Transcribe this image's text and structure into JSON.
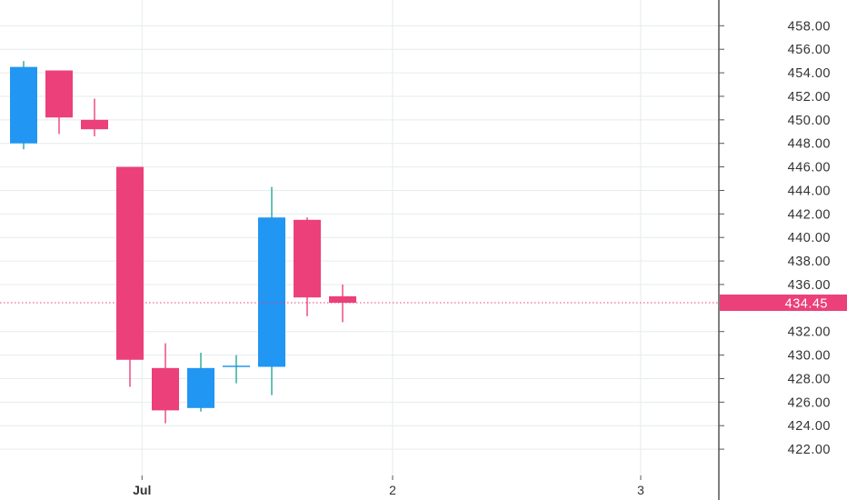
{
  "chart_data": {
    "type": "candlestick",
    "y_ticks": [
      "422.00",
      "424.00",
      "426.00",
      "428.00",
      "430.00",
      "432.00",
      "436.00",
      "438.00",
      "440.00",
      "442.00",
      "444.00",
      "446.00",
      "448.00",
      "450.00",
      "452.00",
      "454.00",
      "456.00",
      "458.00"
    ],
    "ylim": [
      420.5,
      459.2
    ],
    "x_labels": [
      {
        "text": "Jul",
        "bold": true,
        "slot": 3.34
      },
      {
        "text": "2",
        "bold": false,
        "slot": 10.41
      },
      {
        "text": "3",
        "bold": false,
        "slot": 17.41
      }
    ],
    "x_grid_slots": [
      3.34,
      10.41,
      17.41
    ],
    "candles": [
      {
        "slot": 0,
        "open": 448.0,
        "high": 455.0,
        "low": 447.5,
        "close": 454.5
      },
      {
        "slot": 1,
        "open": 454.2,
        "high": 454.2,
        "low": 448.8,
        "close": 450.2
      },
      {
        "slot": 2,
        "open": 450.0,
        "high": 451.8,
        "low": 448.6,
        "close": 449.2
      },
      {
        "slot": 3,
        "open": 446.0,
        "high": 446.0,
        "low": 427.3,
        "close": 429.6
      },
      {
        "slot": 4,
        "open": 428.9,
        "high": 431.0,
        "low": 424.2,
        "close": 425.3
      },
      {
        "slot": 5,
        "open": 425.5,
        "high": 430.2,
        "low": 425.2,
        "close": 428.9
      },
      {
        "slot": 6,
        "open": 429.0,
        "high": 430.0,
        "low": 427.6,
        "close": 429.1
      },
      {
        "slot": 7,
        "open": 429.0,
        "high": 444.3,
        "low": 426.6,
        "close": 441.7
      },
      {
        "slot": 8,
        "open": 441.5,
        "high": 441.7,
        "low": 433.3,
        "close": 434.9
      },
      {
        "slot": 9,
        "open": 435.0,
        "high": 436.0,
        "low": 432.8,
        "close": 434.45
      }
    ],
    "last_price": 434.45,
    "last_price_label": "434.45",
    "colors": {
      "up": "#2196f3",
      "up_wick": "#26a69a",
      "down": "#ec407a",
      "price_tag": "#ec407a",
      "grid": "#e6ebee",
      "axis": "#555555",
      "text": "#333333"
    }
  }
}
